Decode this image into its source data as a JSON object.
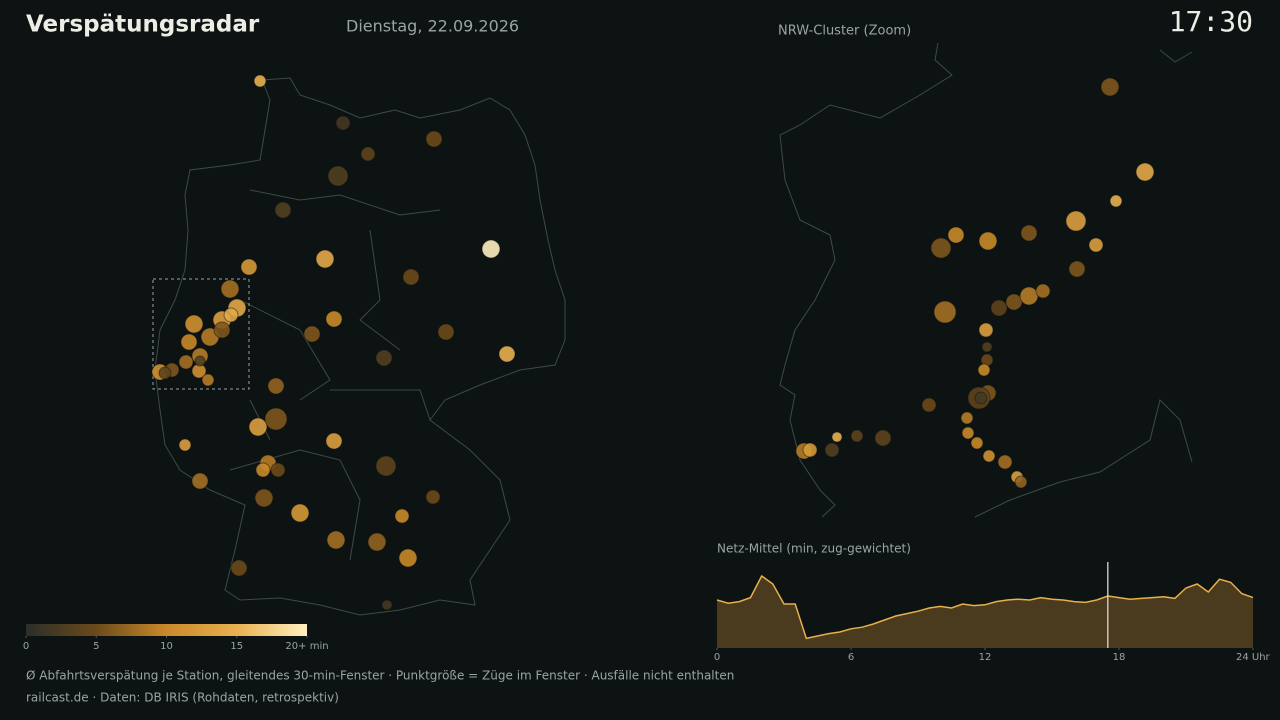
{
  "header": {
    "title": "Verspätungsradar",
    "date": "Dienstag, 22.09.2026",
    "time": "17:30"
  },
  "map": {
    "delays": [
      15,
      2,
      4,
      5,
      3,
      3,
      20,
      14,
      12,
      5,
      8,
      14,
      10,
      6,
      5,
      15,
      3,
      7,
      6,
      13,
      13,
      13,
      4,
      9,
      10,
      5,
      8,
      6,
      5,
      12,
      10,
      8,
      7,
      10,
      5,
      2,
      11,
      9,
      13,
      14,
      10,
      9,
      11,
      9,
      11,
      6,
      8,
      4,
      3,
      6
    ],
    "trains": [
      18,
      25,
      25,
      33,
      51,
      33,
      41,
      41,
      33,
      33,
      41,
      41,
      33,
      33,
      33,
      33,
      33,
      33,
      62,
      41,
      33,
      18,
      51,
      33,
      25,
      25,
      33,
      41,
      25,
      41,
      25,
      41,
      41,
      41,
      33,
      13,
      41,
      41,
      41,
      25,
      33,
      33,
      25,
      18,
      33,
      25,
      25,
      18,
      13,
      33
    ]
  },
  "zoom": {
    "title": "NRW-Cluster (Zoom)",
    "delays": [
      6,
      14,
      15,
      13,
      13,
      6,
      6,
      10,
      10,
      6,
      4,
      6,
      9,
      8,
      8,
      13,
      3,
      5,
      10,
      6,
      4,
      2,
      5,
      9,
      10,
      10,
      11,
      8,
      13,
      7,
      15,
      4,
      4,
      3,
      9,
      12
    ],
    "trains": [
      41,
      41,
      18,
      51,
      25,
      33,
      51,
      33,
      41,
      33,
      33,
      33,
      41,
      25,
      62,
      25,
      13,
      18,
      18,
      33,
      62,
      18,
      25,
      18,
      18,
      18,
      18,
      25,
      18,
      18,
      13,
      18,
      33,
      25,
      33,
      25
    ]
  },
  "colorbar": {
    "clim": [
      0,
      20
    ],
    "colors": [
      "#2b2e2a",
      "#6b4a1a",
      "#c9892a",
      "#e8b050",
      "#fff0c0"
    ],
    "ticks": [
      0,
      5,
      10,
      15,
      {
        "value": 20,
        "label": "20+ min"
      }
    ]
  },
  "chart_data": {
    "type": "area",
    "title": "Netz-Mittel (min, zug-gewichtet)",
    "color": "#e8b04a",
    "fill": "#4a3a1e",
    "x": [
      0,
      0.5,
      1,
      1.5,
      2,
      2.5,
      3,
      3.5,
      4,
      4.5,
      5,
      5.5,
      6,
      6.5,
      7,
      7.5,
      8,
      8.5,
      9,
      9.5,
      10,
      10.5,
      11,
      11.5,
      12,
      12.5,
      13,
      13.5,
      14,
      14.5,
      15,
      15.5,
      16,
      16.5,
      17,
      17.5,
      18,
      18.5,
      19,
      19.5,
      20,
      20.5,
      21,
      21.5,
      22,
      22.5,
      23,
      23.5,
      24
    ],
    "values": [
      6.0,
      5.6,
      5.8,
      6.3,
      9.0,
      8.0,
      5.5,
      5.5,
      1.2,
      1.5,
      1.8,
      2.0,
      2.4,
      2.6,
      3.0,
      3.5,
      4.0,
      4.3,
      4.6,
      5.0,
      5.2,
      5.0,
      5.5,
      5.3,
      5.4,
      5.8,
      6.0,
      6.1,
      6.0,
      6.3,
      6.1,
      6.0,
      5.8,
      5.7,
      6.0,
      6.5,
      6.3,
      6.1,
      6.2,
      6.3,
      6.4,
      6.2,
      7.5,
      8.0,
      7.0,
      8.6,
      8.2,
      6.8,
      6.3
    ],
    "xlim": [
      0,
      24
    ],
    "ylim": [
      0,
      10
    ],
    "xticks": [
      0,
      6,
      12,
      18,
      {
        "value": 24,
        "label": "24 Uhr"
      }
    ],
    "marker": 17.5
  },
  "footer": {
    "note": "Ø Abfahrtsverspätung je Station, gleitendes 30-min-Fenster · Punktgröße = Züge im Fenster · Ausfälle nicht enthalten",
    "source": "railcast.de · Daten: DB IRIS (Rohdaten, retrospektiv)"
  }
}
